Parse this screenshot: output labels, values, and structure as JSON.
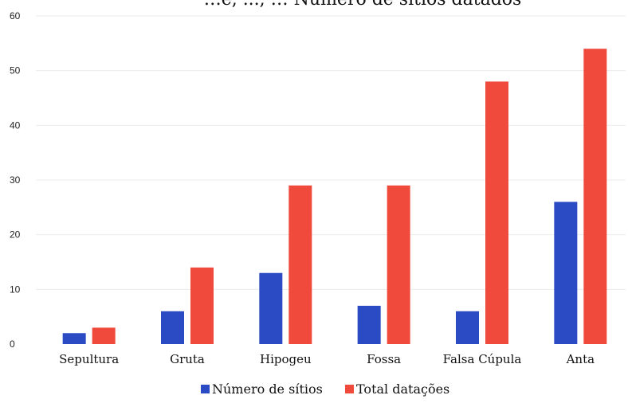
{
  "chart_data": {
    "type": "bar",
    "title": "…e, ..., … Número de sítios datados",
    "categories": [
      "Sepultura",
      "Gruta",
      "Hipogeu",
      "Fossa",
      "Falsa Cúpula",
      "Anta"
    ],
    "series": [
      {
        "name": "Número de sítios",
        "values": [
          2,
          6,
          13,
          7,
          6,
          26
        ],
        "color": "#2b4bc4"
      },
      {
        "name": "Total datações",
        "values": [
          3,
          14,
          29,
          29,
          48,
          54
        ],
        "color": "#f04a3c"
      }
    ],
    "ylim": [
      0,
      60
    ],
    "yticks": [
      "0",
      "10",
      "20",
      "30",
      "40",
      "50",
      "60"
    ],
    "grid": true,
    "legend_position": "bottom"
  }
}
